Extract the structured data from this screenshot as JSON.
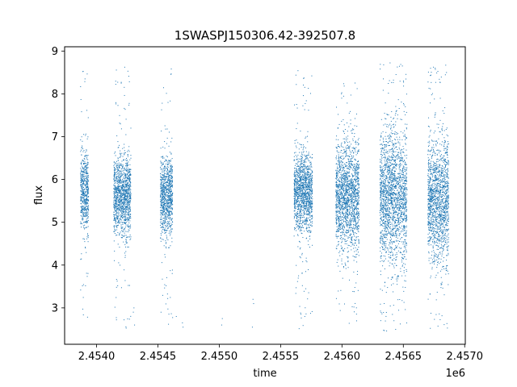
{
  "chart_data": {
    "type": "scatter",
    "title": "1SWASPJ150306.42-392507.8",
    "xlabel": "time",
    "ylabel": "flux",
    "x_offset_label": "1e6",
    "xlim": [
      2453740,
      2457005
    ],
    "ylim": [
      2.15,
      9.1
    ],
    "x_tick_values": [
      2454000,
      2454500,
      2455000,
      2455500,
      2456000,
      2456500,
      2457000
    ],
    "x_tick_labels": [
      "2.4540",
      "2.4545",
      "2.4550",
      "2.4555",
      "2.4560",
      "2.4565",
      "2.4570"
    ],
    "y_tick_values": [
      3,
      4,
      5,
      6,
      7,
      8,
      9
    ],
    "y_tick_labels": [
      "3",
      "4",
      "5",
      "6",
      "7",
      "8",
      "9"
    ],
    "grid": false,
    "marker_color": "#1f77b4",
    "series": [
      {
        "values_summary": "dense light curve, ~20000 points grouped in observing seasons",
        "clusters": [
          {
            "x_range": [
              2453870,
              2453935
            ],
            "y_center": 5.7,
            "y_spread": 0.45,
            "y_min": 2.6,
            "y_max": 8.7
          },
          {
            "x_range": [
              2454140,
              2454280
            ],
            "y_center": 5.6,
            "y_spread": 0.45,
            "y_min": 2.5,
            "y_max": 8.65
          },
          {
            "x_range": [
              2454520,
              2454620
            ],
            "y_center": 5.6,
            "y_spread": 0.45,
            "y_min": 2.6,
            "y_max": 8.6
          },
          {
            "x_range": [
              2455610,
              2455760
            ],
            "y_center": 5.7,
            "y_spread": 0.45,
            "y_min": 2.5,
            "y_max": 8.55
          },
          {
            "x_range": [
              2455950,
              2456140
            ],
            "y_center": 5.6,
            "y_spread": 0.6,
            "y_min": 2.6,
            "y_max": 8.3
          },
          {
            "x_range": [
              2456310,
              2456530
            ],
            "y_center": 5.6,
            "y_spread": 0.8,
            "y_min": 2.45,
            "y_max": 8.75
          },
          {
            "x_range": [
              2456700,
              2456870
            ],
            "y_center": 5.5,
            "y_spread": 0.7,
            "y_min": 2.45,
            "y_max": 8.7
          }
        ],
        "sparse_points": [
          {
            "x": 2454300,
            "y": 2.9
          },
          {
            "x": 2454310,
            "y": 2.6
          },
          {
            "x": 2454305,
            "y": 3.0
          },
          {
            "x": 2454700,
            "y": 2.65
          },
          {
            "x": 2454705,
            "y": 2.55
          },
          {
            "x": 2454650,
            "y": 2.8
          },
          {
            "x": 2455020,
            "y": 2.6
          },
          {
            "x": 2455025,
            "y": 2.75
          },
          {
            "x": 2455270,
            "y": 2.55
          },
          {
            "x": 2455280,
            "y": 3.1
          },
          {
            "x": 2455275,
            "y": 3.2
          }
        ]
      }
    ]
  }
}
